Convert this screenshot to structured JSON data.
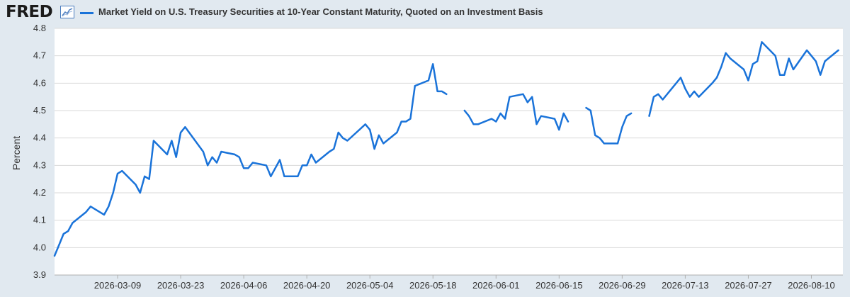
{
  "app": {
    "logo_text": "FRED",
    "logo_icon": "chart-line-icon"
  },
  "chart_data": {
    "type": "line",
    "title": "",
    "ylabel": "Percent",
    "xlabel": "",
    "ylim": [
      3.9,
      4.8
    ],
    "yticks": [
      "3.9",
      "4.0",
      "4.1",
      "4.2",
      "4.3",
      "4.4",
      "4.5",
      "4.6",
      "4.7",
      "4.8"
    ],
    "xlim": [
      "2026-02-23",
      "2026-08-17"
    ],
    "xticks": [
      "2026-03-09",
      "2026-03-23",
      "2026-04-06",
      "2026-04-20",
      "2026-05-04",
      "2026-05-18",
      "2026-06-01",
      "2026-06-15",
      "2026-06-29",
      "2026-07-13",
      "2026-07-27",
      "2026-08-10"
    ],
    "grid": "horizontal",
    "legend_position": "top-left",
    "series": [
      {
        "name": "Market Yield on U.S. Treasury Securities at 10-Year Constant Maturity, Quoted on an Investment Basis",
        "color": "#1a73d9",
        "points": [
          [
            "2026-02-23",
            3.97
          ],
          [
            "2026-02-24",
            4.01
          ],
          [
            "2026-02-25",
            4.05
          ],
          [
            "2026-02-26",
            4.06
          ],
          [
            "2026-02-27",
            4.09
          ],
          [
            "2026-03-02",
            4.13
          ],
          [
            "2026-03-03",
            4.15
          ],
          [
            "2026-03-06",
            4.12
          ],
          [
            "2026-03-07",
            4.15
          ],
          [
            "2026-03-08",
            4.2
          ],
          [
            "2026-03-09",
            4.27
          ],
          [
            "2026-03-10",
            4.28
          ],
          [
            "2026-03-13",
            4.23
          ],
          [
            "2026-03-14",
            4.2
          ],
          [
            "2026-03-15",
            4.26
          ],
          [
            "2026-03-16",
            4.25
          ],
          [
            "2026-03-17",
            4.39
          ],
          [
            "2026-03-20",
            4.34
          ],
          [
            "2026-03-21",
            4.39
          ],
          [
            "2026-03-22",
            4.33
          ],
          [
            "2026-03-23",
            4.42
          ],
          [
            "2026-03-24",
            4.44
          ],
          [
            "2026-03-28",
            4.35
          ],
          [
            "2026-03-29",
            4.3
          ],
          [
            "2026-03-30",
            4.33
          ],
          [
            "2026-03-31",
            4.31
          ],
          [
            "2026-04-01",
            4.35
          ],
          [
            "2026-04-04",
            4.34
          ],
          [
            "2026-04-05",
            4.33
          ],
          [
            "2026-04-06",
            4.29
          ],
          [
            "2026-04-07",
            4.29
          ],
          [
            "2026-04-08",
            4.31
          ],
          [
            "2026-04-11",
            4.3
          ],
          [
            "2026-04-12",
            4.26
          ],
          [
            "2026-04-14",
            4.32
          ],
          [
            "2026-04-15",
            4.26
          ],
          [
            "2026-04-18",
            4.26
          ],
          [
            "2026-04-19",
            4.3
          ],
          [
            "2026-04-20",
            4.3
          ],
          [
            "2026-04-21",
            4.34
          ],
          [
            "2026-04-22",
            4.31
          ],
          [
            "2026-04-25",
            4.35
          ],
          [
            "2026-04-26",
            4.36
          ],
          [
            "2026-04-27",
            4.42
          ],
          [
            "2026-04-28",
            4.4
          ],
          [
            "2026-04-29",
            4.39
          ],
          [
            "2026-05-03",
            4.45
          ],
          [
            "2026-05-04",
            4.43
          ],
          [
            "2026-05-05",
            4.36
          ],
          [
            "2026-05-06",
            4.41
          ],
          [
            "2026-05-07",
            4.38
          ],
          [
            "2026-05-10",
            4.42
          ],
          [
            "2026-05-11",
            4.46
          ],
          [
            "2026-05-12",
            4.46
          ],
          [
            "2026-05-13",
            4.47
          ],
          [
            "2026-05-14",
            4.59
          ],
          [
            "2026-05-17",
            4.61
          ],
          [
            "2026-05-18",
            4.67
          ],
          [
            "2026-05-19",
            4.57
          ],
          [
            "2026-05-20",
            4.57
          ],
          [
            "2026-05-21",
            4.56
          ],
          null,
          [
            "2026-05-25",
            4.5
          ],
          [
            "2026-05-26",
            4.48
          ],
          [
            "2026-05-27",
            4.45
          ],
          [
            "2026-05-28",
            4.45
          ],
          [
            "2026-05-31",
            4.47
          ],
          [
            "2026-06-01",
            4.46
          ],
          [
            "2026-06-02",
            4.49
          ],
          [
            "2026-06-03",
            4.47
          ],
          [
            "2026-06-04",
            4.55
          ],
          [
            "2026-06-07",
            4.56
          ],
          [
            "2026-06-08",
            4.53
          ],
          [
            "2026-06-09",
            4.55
          ],
          [
            "2026-06-10",
            4.45
          ],
          [
            "2026-06-11",
            4.48
          ],
          [
            "2026-06-14",
            4.47
          ],
          [
            "2026-06-15",
            4.43
          ],
          [
            "2026-06-16",
            4.49
          ],
          [
            "2026-06-17",
            4.46
          ],
          null,
          [
            "2026-06-21",
            4.51
          ],
          [
            "2026-06-22",
            4.5
          ],
          [
            "2026-06-23",
            4.41
          ],
          [
            "2026-06-24",
            4.4
          ],
          [
            "2026-06-25",
            4.38
          ],
          [
            "2026-06-28",
            4.38
          ],
          [
            "2026-06-29",
            4.44
          ],
          [
            "2026-06-30",
            4.48
          ],
          [
            "2026-07-01",
            4.49
          ],
          null,
          [
            "2026-07-05",
            4.48
          ],
          [
            "2026-07-06",
            4.55
          ],
          [
            "2026-07-07",
            4.56
          ],
          [
            "2026-07-08",
            4.54
          ],
          [
            "2026-07-12",
            4.62
          ],
          [
            "2026-07-13",
            4.58
          ],
          [
            "2026-07-14",
            4.55
          ],
          [
            "2026-07-15",
            4.57
          ],
          [
            "2026-07-16",
            4.55
          ],
          [
            "2026-07-19",
            4.6
          ],
          [
            "2026-07-20",
            4.62
          ],
          [
            "2026-07-21",
            4.66
          ],
          [
            "2026-07-22",
            4.71
          ],
          [
            "2026-07-23",
            4.69
          ],
          [
            "2026-07-26",
            4.65
          ],
          [
            "2026-07-27",
            4.61
          ],
          [
            "2026-07-28",
            4.67
          ],
          [
            "2026-07-29",
            4.68
          ],
          [
            "2026-07-30",
            4.75
          ],
          [
            "2026-08-02",
            4.7
          ],
          [
            "2026-08-03",
            4.63
          ],
          [
            "2026-08-04",
            4.63
          ],
          [
            "2026-08-05",
            4.69
          ],
          [
            "2026-08-06",
            4.65
          ],
          [
            "2026-08-09",
            4.72
          ],
          [
            "2026-08-10",
            4.7
          ],
          [
            "2026-08-11",
            4.68
          ],
          [
            "2026-08-12",
            4.63
          ],
          [
            "2026-08-13",
            4.68
          ],
          [
            "2026-08-16",
            4.72
          ]
        ]
      }
    ]
  }
}
